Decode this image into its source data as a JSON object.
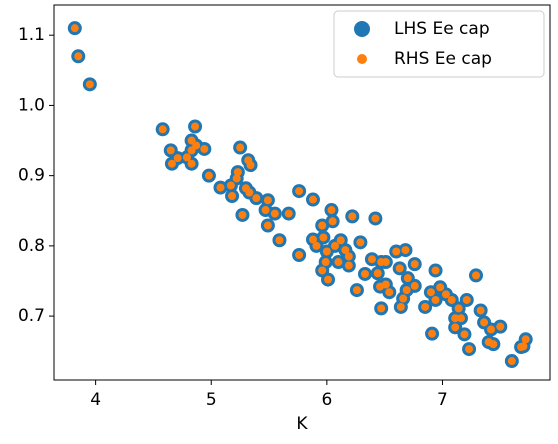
{
  "chart_data": {
    "type": "scatter",
    "xlabel": "K",
    "x": [
      3.82,
      3.85,
      3.95,
      4.58,
      4.65,
      4.66,
      4.71,
      4.79,
      4.83,
      4.86,
      4.83,
      4.87,
      4.83,
      4.94,
      4.98,
      5.08,
      5.17,
      5.18,
      5.22,
      5.23,
      5.25,
      5.3,
      5.27,
      5.32,
      5.34,
      5.33,
      5.39,
      5.49,
      5.47,
      5.49,
      5.55,
      5.59,
      5.67,
      5.76,
      5.76,
      5.88,
      5.88,
      5.91,
      5.96,
      5.97,
      6.04,
      6.05,
      6.0,
      5.99,
      5.96,
      6.01,
      6.07,
      6.12,
      6.16,
      6.19,
      6.19,
      6.1,
      6.22,
      6.29,
      6.26,
      6.33,
      6.42,
      6.39,
      6.44,
      6.47,
      6.51,
      6.46,
      6.51,
      6.54,
      6.47,
      6.6,
      6.68,
      6.63,
      6.66,
      6.69,
      6.64,
      6.7,
      6.76,
      6.76,
      6.85,
      6.94,
      6.9,
      6.94,
      6.91,
      6.98,
      7.03,
      7.08,
      7.11,
      7.14,
      7.16,
      7.19,
      7.23,
      7.21,
      7.29,
      7.33,
      7.36,
      7.42,
      7.44,
      7.5,
      7.6,
      7.68,
      7.72,
      7.7,
      7.4,
      7.11
    ],
    "series": [
      {
        "name": "LHS Ee cap",
        "color": "#1f77b4",
        "values": [
          1.11,
          1.07,
          1.03,
          0.966,
          0.936,
          0.917,
          0.925,
          0.926,
          0.917,
          0.97,
          0.95,
          0.943,
          0.936,
          0.938,
          0.9,
          0.883,
          0.886,
          0.871,
          0.896,
          0.905,
          0.94,
          0.882,
          0.844,
          0.922,
          0.915,
          0.876,
          0.868,
          0.865,
          0.851,
          0.829,
          0.846,
          0.808,
          0.846,
          0.878,
          0.787,
          0.866,
          0.809,
          0.8,
          0.829,
          0.812,
          0.851,
          0.835,
          0.792,
          0.777,
          0.765,
          0.752,
          0.8,
          0.808,
          0.794,
          0.772,
          0.785,
          0.777,
          0.842,
          0.805,
          0.737,
          0.76,
          0.839,
          0.781,
          0.761,
          0.777,
          0.777,
          0.742,
          0.745,
          0.734,
          0.711,
          0.792,
          0.794,
          0.768,
          0.725,
          0.737,
          0.713,
          0.754,
          0.774,
          0.743,
          0.713,
          0.765,
          0.734,
          0.723,
          0.675,
          0.741,
          0.731,
          0.723,
          0.684,
          0.711,
          0.697,
          0.674,
          0.653,
          0.723,
          0.758,
          0.708,
          0.691,
          0.681,
          0.66,
          0.685,
          0.636,
          0.656,
          0.667,
          0.657,
          0.663,
          0.697
        ]
      },
      {
        "name": "RHS Ee cap",
        "color": "#ff7f0e",
        "values": [
          1.11,
          1.07,
          1.03,
          0.966,
          0.936,
          0.917,
          0.925,
          0.926,
          0.917,
          0.97,
          0.95,
          0.943,
          0.936,
          0.938,
          0.9,
          0.883,
          0.886,
          0.871,
          0.896,
          0.905,
          0.94,
          0.882,
          0.844,
          0.922,
          0.915,
          0.876,
          0.868,
          0.865,
          0.851,
          0.829,
          0.846,
          0.808,
          0.846,
          0.878,
          0.787,
          0.866,
          0.809,
          0.8,
          0.829,
          0.812,
          0.851,
          0.835,
          0.792,
          0.777,
          0.765,
          0.752,
          0.8,
          0.808,
          0.794,
          0.772,
          0.785,
          0.777,
          0.842,
          0.805,
          0.737,
          0.76,
          0.839,
          0.781,
          0.761,
          0.777,
          0.777,
          0.742,
          0.745,
          0.734,
          0.711,
          0.792,
          0.794,
          0.768,
          0.725,
          0.737,
          0.713,
          0.754,
          0.774,
          0.743,
          0.713,
          0.765,
          0.734,
          0.723,
          0.675,
          0.741,
          0.731,
          0.723,
          0.684,
          0.711,
          0.697,
          0.674,
          0.653,
          0.723,
          0.758,
          0.708,
          0.691,
          0.681,
          0.66,
          0.685,
          0.636,
          0.656,
          0.667,
          0.657,
          0.663,
          0.697
        ]
      }
    ],
    "xlim": [
      3.64,
      7.93
    ],
    "ylim": [
      0.609,
      1.143
    ],
    "xticks": [
      4,
      5,
      6,
      7
    ],
    "yticks": [
      0.7,
      0.8,
      0.9,
      {
        "value": 1.0,
        "label": "1.0"
      },
      1.1
    ],
    "legend": "upper right"
  }
}
